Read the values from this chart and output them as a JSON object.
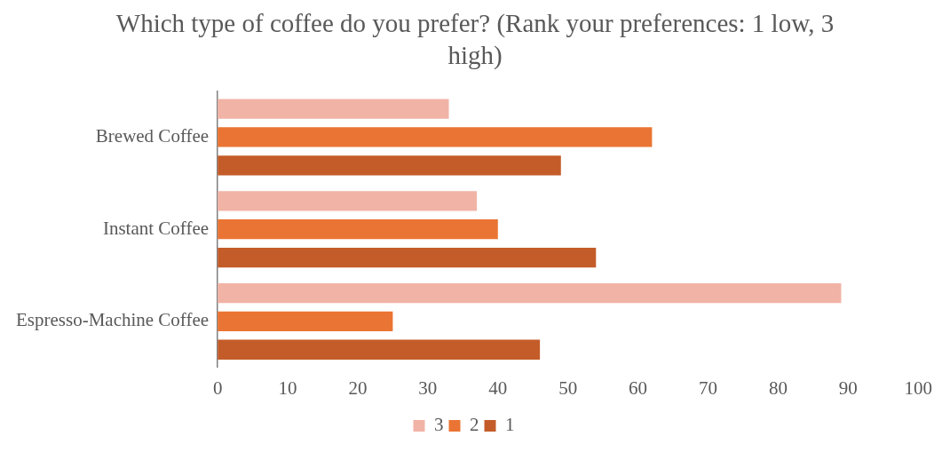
{
  "chart_data": {
    "type": "bar",
    "orientation": "horizontal",
    "title": "Which type of coffee do you prefer? (Rank your preferences: 1 low, 3 high)",
    "categories": [
      "Brewed Coffee",
      "Instant Coffee",
      "Espresso-Machine Coffee"
    ],
    "series": [
      {
        "name": "3",
        "color": "#f1b3a5",
        "values": [
          33,
          37,
          89
        ]
      },
      {
        "name": "2",
        "color": "#ea7433",
        "values": [
          62,
          40,
          25
        ]
      },
      {
        "name": "1",
        "color": "#c45c29",
        "values": [
          49,
          54,
          46
        ]
      }
    ],
    "xlim": [
      0,
      100
    ],
    "xticks": [
      0,
      10,
      20,
      30,
      40,
      50,
      60,
      70,
      80,
      90,
      100
    ],
    "grid": false,
    "legend": "bottom"
  }
}
